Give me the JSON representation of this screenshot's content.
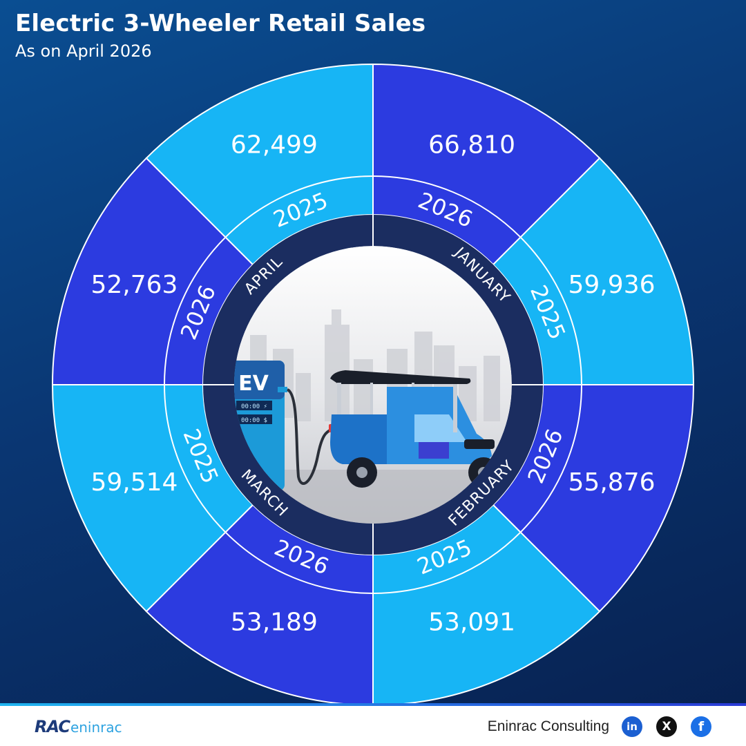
{
  "header": {
    "title": "Electric 3-Wheeler Retail Sales",
    "subtitle": "As on April 2026"
  },
  "chart_data": {
    "type": "pie",
    "title": "Electric 3-Wheeler Retail Sales",
    "subtitle": "As on April 2026",
    "months": [
      {
        "month": "JANUARY",
        "series": [
          {
            "year": "2026",
            "value": 66810
          },
          {
            "year": "2025",
            "value": 59936
          }
        ]
      },
      {
        "month": "FEBRUARY",
        "series": [
          {
            "year": "2026",
            "value": 55876
          },
          {
            "year": "2025",
            "value": 53091
          }
        ]
      },
      {
        "month": "MARCH",
        "series": [
          {
            "year": "2026",
            "value": 53189
          },
          {
            "year": "2025",
            "value": 59514
          }
        ]
      },
      {
        "month": "APRIL",
        "series": [
          {
            "year": "2026",
            "value": 52763
          },
          {
            "year": "2025",
            "value": 62499
          }
        ]
      }
    ],
    "colors": {
      "2026": "#2c3be0",
      "2025": "#17b5f5",
      "ring": "#1b2d60"
    }
  },
  "illustration": {
    "station_label": "EV",
    "display_1": "00:00 ⚡",
    "display_2": "00:00 $"
  },
  "footer": {
    "logo_mark": "RAC",
    "logo_text": "eninrac",
    "company": "Eninrac Consulting",
    "social_icons": [
      "linkedin-icon",
      "x-icon",
      "facebook-icon"
    ],
    "social_labels": [
      "in",
      "X",
      "f"
    ]
  }
}
